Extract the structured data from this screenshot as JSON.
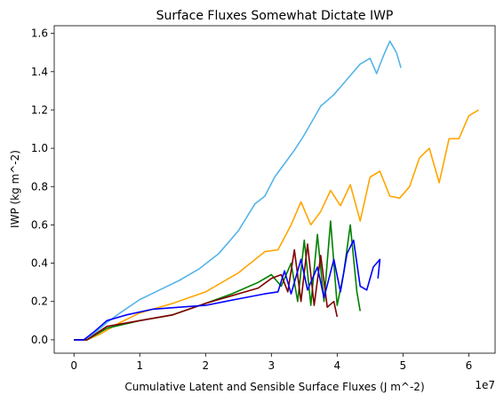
{
  "chart_data": {
    "type": "line",
    "title": "Surface Fluxes Somewhat Dictate IWP",
    "xlabel": "Cumulative Latent and Sensible Surface Fluxes (J m^-2)",
    "ylabel": "IWP (kg m^-2)",
    "x_offset_label": "1e7",
    "xlim": [
      -0.3,
      6.4
    ],
    "ylim": [
      -0.07,
      1.64
    ],
    "x_scale_factor": 10000000,
    "xticks": [
      0,
      1,
      2,
      3,
      4,
      5,
      6
    ],
    "xtick_labels": [
      "0",
      "1",
      "2",
      "3",
      "4",
      "5",
      "6"
    ],
    "yticks": [
      0.0,
      0.2,
      0.4,
      0.6,
      0.8,
      1.0,
      1.2,
      1.4,
      1.6
    ],
    "ytick_labels": [
      "0.0",
      "0.2",
      "0.4",
      "0.6",
      "0.8",
      "1.0",
      "1.2",
      "1.4",
      "1.6"
    ],
    "grid": false,
    "series": [
      {
        "color": "#56b4e9",
        "x": [
          0,
          0.15,
          0.3,
          0.5,
          0.7,
          1.0,
          1.3,
          1.6,
          1.9,
          2.2,
          2.5,
          2.75,
          2.9,
          3.05,
          3.2,
          3.35,
          3.5,
          3.65,
          3.75,
          3.85,
          3.95,
          4.05,
          4.2,
          4.35,
          4.5,
          4.6,
          4.7,
          4.8,
          4.9,
          4.97
        ],
        "values": [
          0.0,
          0.0,
          0.03,
          0.09,
          0.14,
          0.21,
          0.26,
          0.31,
          0.37,
          0.45,
          0.57,
          0.71,
          0.75,
          0.85,
          0.92,
          0.99,
          1.07,
          1.16,
          1.22,
          1.25,
          1.28,
          1.32,
          1.38,
          1.44,
          1.47,
          1.39,
          1.48,
          1.56,
          1.5,
          1.42
        ]
      },
      {
        "color": "#ffa500",
        "x": [
          0,
          0.2,
          0.4,
          0.7,
          1.0,
          1.5,
          2.0,
          2.5,
          2.9,
          3.1,
          3.3,
          3.45,
          3.6,
          3.75,
          3.9,
          4.05,
          4.2,
          4.35,
          4.5,
          4.65,
          4.8,
          4.95,
          5.1,
          5.25,
          5.4,
          5.55,
          5.7,
          5.85,
          6.0,
          6.15
        ],
        "values": [
          0.0,
          0.0,
          0.03,
          0.09,
          0.14,
          0.19,
          0.25,
          0.35,
          0.46,
          0.47,
          0.6,
          0.72,
          0.6,
          0.67,
          0.78,
          0.7,
          0.81,
          0.62,
          0.85,
          0.88,
          0.75,
          0.74,
          0.8,
          0.95,
          1.0,
          0.82,
          1.05,
          1.05,
          1.17,
          1.2
        ]
      },
      {
        "color": "#008000",
        "x": [
          0,
          0.2,
          0.5,
          1.0,
          1.5,
          2.0,
          2.4,
          2.6,
          2.8,
          3.0,
          3.15,
          3.3,
          3.4,
          3.5,
          3.6,
          3.7,
          3.8,
          3.9,
          4.0,
          4.1,
          4.2,
          4.3,
          4.35
        ],
        "values": [
          0.0,
          0.0,
          0.06,
          0.1,
          0.13,
          0.19,
          0.24,
          0.27,
          0.3,
          0.34,
          0.28,
          0.4,
          0.2,
          0.52,
          0.18,
          0.55,
          0.2,
          0.62,
          0.18,
          0.35,
          0.6,
          0.25,
          0.15
        ]
      },
      {
        "color": "#800000",
        "x": [
          0,
          0.2,
          0.5,
          1.0,
          1.5,
          2.0,
          2.3,
          2.6,
          2.8,
          3.0,
          3.15,
          3.25,
          3.35,
          3.45,
          3.55,
          3.65,
          3.75,
          3.85,
          3.95,
          4.0
        ],
        "values": [
          0.0,
          0.0,
          0.07,
          0.1,
          0.13,
          0.19,
          0.22,
          0.25,
          0.27,
          0.32,
          0.34,
          0.25,
          0.47,
          0.2,
          0.5,
          0.18,
          0.44,
          0.17,
          0.2,
          0.12
        ]
      },
      {
        "color": "#0000ff",
        "x": [
          0,
          0.15,
          0.3,
          0.5,
          0.8,
          1.2,
          1.6,
          2.0,
          2.3,
          2.6,
          2.9,
          3.1,
          3.2,
          3.3,
          3.45,
          3.55,
          3.7,
          3.8,
          3.95,
          4.05,
          4.15,
          4.25,
          4.35,
          4.45,
          4.55,
          4.65,
          4.62
        ],
        "values": [
          0.0,
          0.0,
          0.04,
          0.1,
          0.13,
          0.16,
          0.17,
          0.18,
          0.2,
          0.22,
          0.24,
          0.25,
          0.36,
          0.24,
          0.42,
          0.26,
          0.38,
          0.22,
          0.42,
          0.25,
          0.45,
          0.52,
          0.28,
          0.26,
          0.38,
          0.42,
          0.32
        ]
      }
    ]
  }
}
